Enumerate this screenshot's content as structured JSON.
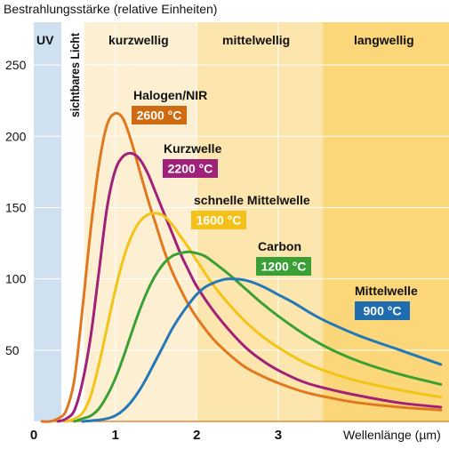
{
  "chart_data": {
    "type": "line",
    "ylabel": "Bestrahlungsstärke (relative Einheiten)",
    "xlabel": "Wellenlänge (µm)",
    "xlim": [
      0,
      5.1
    ],
    "ylim": [
      0,
      280
    ],
    "xticks": [
      0,
      1,
      2,
      3
    ],
    "yticks": [
      50,
      100,
      150,
      200,
      250
    ],
    "grid": true,
    "bands": [
      {
        "label": "UV",
        "x0": 0,
        "x1": 0.34,
        "color": "#cfe0f0"
      },
      {
        "label": "sichtbares Licht",
        "x0": 0.34,
        "x1": 0.62,
        "color": "#ffffff"
      },
      {
        "label": "kurzwellig",
        "x0": 0.62,
        "x1": 2.0,
        "color": "#fdf0d2"
      },
      {
        "label": "mittelwellig",
        "x0": 2.0,
        "x1": 3.55,
        "color": "#fce6ad"
      },
      {
        "label": "langwellig",
        "x0": 3.55,
        "x1": 5.1,
        "color": "#fbd77a"
      }
    ],
    "series": [
      {
        "name": "Halogen/NIR",
        "temperature": "2600 °C",
        "color": "#e07820",
        "labelColor": "#d06a10",
        "x": [
          0.1,
          0.2,
          0.3,
          0.4,
          0.5,
          0.6,
          0.7,
          0.8,
          0.9,
          1.0,
          1.1,
          1.2,
          1.3,
          1.4,
          1.5,
          1.6,
          1.7,
          1.8,
          1.9,
          2.0,
          2.2,
          2.4,
          2.6,
          2.8,
          3.0,
          3.3,
          3.6,
          4.0,
          4.5,
          5.0
        ],
        "y": [
          0,
          0,
          2,
          8,
          30,
          80,
          135,
          180,
          208,
          216,
          212,
          196,
          176,
          156,
          138,
          120,
          105,
          93,
          82,
          73,
          58,
          47,
          38,
          32,
          27,
          21,
          17,
          13,
          10,
          8
        ]
      },
      {
        "name": "Kurzwelle",
        "temperature": "2200 °C",
        "color": "#a0207a",
        "labelColor": "#a0207a",
        "x": [
          0.3,
          0.4,
          0.5,
          0.6,
          0.7,
          0.8,
          0.9,
          1.0,
          1.1,
          1.2,
          1.3,
          1.4,
          1.5,
          1.6,
          1.7,
          1.8,
          1.9,
          2.0,
          2.2,
          2.4,
          2.6,
          2.8,
          3.0,
          3.3,
          3.6,
          4.0,
          4.5,
          5.0
        ],
        "y": [
          0,
          2,
          8,
          28,
          60,
          105,
          150,
          176,
          186,
          188,
          184,
          174,
          160,
          146,
          132,
          118,
          106,
          95,
          78,
          64,
          52,
          43,
          36,
          28,
          23,
          18,
          13,
          10
        ]
      },
      {
        "name": "schnelle Mittelwelle",
        "temperature": "1600 °C",
        "color": "#f2c418",
        "labelColor": "#f5c01a",
        "x": [
          0.4,
          0.5,
          0.6,
          0.7,
          0.8,
          0.9,
          1.0,
          1.1,
          1.2,
          1.3,
          1.4,
          1.5,
          1.6,
          1.7,
          1.8,
          1.9,
          2.0,
          2.2,
          2.4,
          2.6,
          2.8,
          3.0,
          3.3,
          3.6,
          4.0,
          4.5,
          5.0
        ],
        "y": [
          0,
          2,
          6,
          18,
          40,
          66,
          92,
          114,
          130,
          140,
          145,
          146,
          144,
          138,
          130,
          122,
          113,
          96,
          82,
          70,
          60,
          52,
          42,
          35,
          28,
          22,
          17
        ]
      },
      {
        "name": "Carbon",
        "temperature": "1200 °C",
        "color": "#3aa035",
        "labelColor": "#3aa035",
        "x": [
          0.5,
          0.6,
          0.7,
          0.8,
          0.9,
          1.0,
          1.1,
          1.2,
          1.3,
          1.4,
          1.5,
          1.6,
          1.7,
          1.8,
          1.9,
          2.0,
          2.1,
          2.2,
          2.4,
          2.6,
          2.8,
          3.0,
          3.3,
          3.6,
          4.0,
          4.5,
          5.0
        ],
        "y": [
          0,
          2,
          4,
          9,
          18,
          30,
          45,
          62,
          78,
          92,
          103,
          111,
          116,
          118,
          119,
          118,
          116,
          112,
          103,
          93,
          83,
          74,
          62,
          52,
          42,
          33,
          26
        ]
      },
      {
        "name": "Mittelwelle",
        "temperature": "900 °C",
        "color": "#2578b8",
        "labelColor": "#1f6db0",
        "x": [
          0.6,
          0.8,
          0.9,
          1.0,
          1.1,
          1.2,
          1.3,
          1.4,
          1.5,
          1.6,
          1.7,
          1.8,
          1.9,
          2.0,
          2.1,
          2.2,
          2.3,
          2.4,
          2.6,
          2.8,
          3.0,
          3.2,
          3.4,
          3.6,
          4.0,
          4.5,
          5.0
        ],
        "y": [
          0,
          1,
          2,
          4,
          8,
          14,
          22,
          32,
          43,
          54,
          65,
          74,
          82,
          89,
          94,
          97,
          99,
          100,
          99,
          95,
          89,
          83,
          76,
          70,
          60,
          50,
          40
        ]
      }
    ]
  }
}
